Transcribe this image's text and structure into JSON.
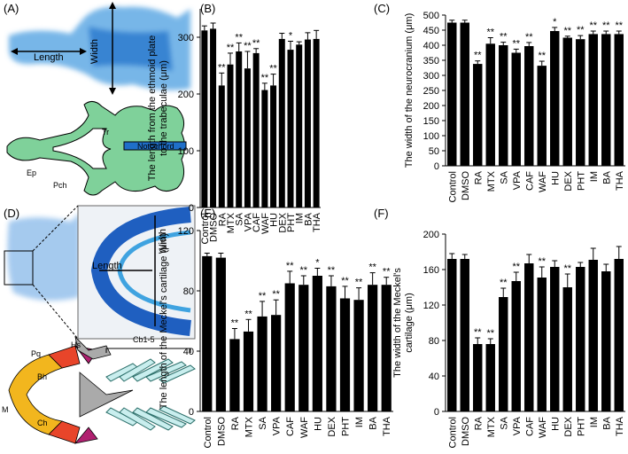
{
  "panels": {
    "A": {
      "label": "(A)",
      "length": "Length",
      "width": "Width",
      "tr": "Tr",
      "notochord": "Notochord",
      "ep": "Ep",
      "pch": "Pch"
    },
    "D": {
      "label": "(D)",
      "length": "Length",
      "width": "Width",
      "hs": "Hs",
      "cb": "Cb1-5",
      "pq": "Pq",
      "bh": "Bh",
      "m": "M",
      "ch": "Ch"
    }
  },
  "chart_data": [
    {
      "type": "bar",
      "label": "(B)",
      "ylabel": [
        "The length from the ethmoid plate",
        "to the trabeculae  (μm)"
      ],
      "categories": [
        "Control",
        "DMSO",
        "RA",
        "MTX",
        "SA",
        "VPA",
        "CAF",
        "WAF",
        "HU",
        "DEX",
        "PHT",
        "IM",
        "BA",
        "THA"
      ],
      "values": [
        312,
        315,
        215,
        252,
        275,
        245,
        272,
        207,
        215,
        297,
        278,
        287,
        296,
        297
      ],
      "errors": [
        8,
        10,
        22,
        20,
        15,
        30,
        8,
        12,
        20,
        10,
        15,
        5,
        12,
        15
      ],
      "annotations": [
        null,
        null,
        "**",
        "**",
        "**",
        "**",
        "**",
        "**",
        "**",
        null,
        "*",
        null,
        null,
        null
      ],
      "color": "#000000",
      "ylim": [
        0,
        350
      ],
      "yticks": [
        0,
        100,
        200,
        300
      ]
    },
    {
      "type": "bar",
      "label": "(C)",
      "ylabel": "The width of the neurocranium (μm)",
      "categories": [
        "Control",
        "DMSO",
        "RA",
        "MTX",
        "SA",
        "VPA",
        "CAF",
        "WAF",
        "HU",
        "DEX",
        "PHT",
        "IM",
        "BA",
        "THA"
      ],
      "values": [
        475,
        475,
        338,
        405,
        400,
        375,
        397,
        332,
        447,
        425,
        420,
        437,
        437,
        437
      ],
      "errors": [
        8,
        8,
        10,
        20,
        10,
        12,
        12,
        15,
        12,
        5,
        12,
        10,
        10,
        10
      ],
      "annotations": [
        null,
        null,
        "**",
        "**",
        "**",
        "**",
        "**",
        "**",
        "*",
        "**",
        "**",
        "**",
        "**",
        "**"
      ],
      "color": "#000000",
      "ylim": [
        0,
        500
      ],
      "yticks": [
        0,
        50,
        100,
        150,
        200,
        250,
        300,
        350,
        400,
        450,
        500
      ]
    },
    {
      "type": "bar",
      "label": "(E)",
      "ylabel": "The length of the Meckel's cartilage (μm)",
      "categories": [
        "Control",
        "DMSO",
        "RA",
        "MTX",
        "SA",
        "VPA",
        "CAF",
        "WAF",
        "HU",
        "DEX",
        "PHT",
        "IM",
        "BA",
        "THA"
      ],
      "values": [
        103,
        102,
        48,
        53,
        63,
        64,
        85,
        84,
        90,
        83,
        75,
        74,
        84,
        84
      ],
      "errors": [
        2,
        3,
        7,
        8,
        10,
        10,
        8,
        6,
        5,
        7,
        8,
        8,
        8,
        5
      ],
      "annotations": [
        null,
        null,
        "**",
        "**",
        "**",
        "**",
        "**",
        "**",
        "*",
        "**",
        "**",
        "**",
        "**",
        "**"
      ],
      "color": "#000000",
      "ylim": [
        0,
        120
      ],
      "yticks": [
        0,
        40,
        80,
        120
      ]
    },
    {
      "type": "bar",
      "label": "(F)",
      "ylabel": [
        "The width of the Meckel's",
        "cartilage (μm)"
      ],
      "categories": [
        "Control",
        "DMSO",
        "RA",
        "MTX",
        "SA",
        "VPA",
        "CAF",
        "WAF",
        "HU",
        "DEX",
        "PHT",
        "IM",
        "BA",
        "THA"
      ],
      "values": [
        172,
        172,
        76,
        76,
        129,
        147,
        167,
        151,
        163,
        140,
        163,
        171,
        158,
        172
      ],
      "errors": [
        6,
        5,
        7,
        6,
        10,
        10,
        10,
        12,
        7,
        15,
        5,
        13,
        8,
        14
      ],
      "annotations": [
        null,
        null,
        "**",
        "**",
        "**",
        "**",
        null,
        "**",
        null,
        "**",
        null,
        null,
        null,
        null
      ],
      "color": "#000000",
      "ylim": [
        0,
        200
      ],
      "yticks": [
        0,
        40,
        80,
        120,
        160,
        200
      ]
    }
  ]
}
